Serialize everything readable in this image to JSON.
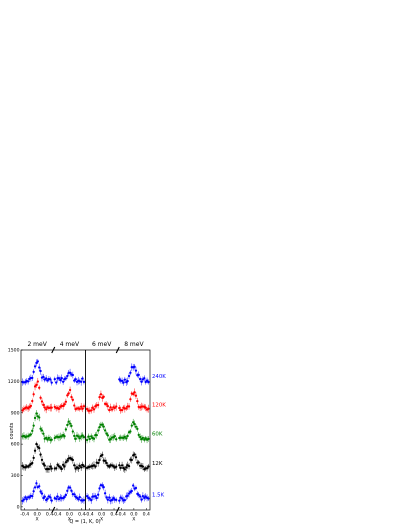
{
  "chart_data": {
    "type": "scatter",
    "ylabel": "counts",
    "xlabel": "Q = (1, K, 0)",
    "ylim": [
      -30,
      1500
    ],
    "y_ticks": [
      "0",
      "300",
      "600",
      "900",
      "1200",
      "1500"
    ],
    "y_tick_values": [
      0,
      300,
      600,
      900,
      1200,
      1500
    ],
    "panels": [
      {
        "label": "2 meV",
        "x_ticks": [
          "-0.4",
          "0.0",
          "0.4"
        ],
        "x_tick_values": [
          -0.4,
          0.0,
          0.4
        ],
        "x_sub_label": "X",
        "xlim": [
          -0.52,
          0.52
        ]
      },
      {
        "label": "4 meV",
        "x_ticks": [
          "-0.4",
          "0.0",
          "0.4"
        ],
        "x_tick_values": [
          -0.4,
          0.0,
          0.4
        ],
        "x_sub_label": "X",
        "xlim": [
          -0.52,
          0.52
        ]
      },
      {
        "label": "6 meV",
        "x_ticks": [
          "-0.4",
          "0.0",
          "0.4"
        ],
        "x_tick_values": [
          -0.4,
          0.0,
          0.4
        ],
        "x_sub_label": "X",
        "xlim": [
          -0.52,
          0.52
        ]
      },
      {
        "label": "8 meV",
        "x_ticks": [
          "-0.4",
          "0.0",
          "0.4"
        ],
        "x_tick_values": [
          -0.4,
          0.0,
          0.4
        ],
        "x_sub_label": "X",
        "xlim": [
          -0.52,
          0.52
        ]
      }
    ],
    "series": [
      {
        "name": "1.5K",
        "color": "#0000ff",
        "offset": 0,
        "peaks": [
          {
            "panel": 0,
            "amp": 130
          },
          {
            "panel": 1,
            "amp": 90
          },
          {
            "panel": 2,
            "amp": 120
          },
          {
            "panel": 3,
            "amp": 110
          }
        ],
        "base": 80
      },
      {
        "name": "12K",
        "color": "#000000",
        "offset": 300,
        "peaks": [
          {
            "panel": 0,
            "amp": 220
          },
          {
            "panel": 1,
            "amp": 100
          },
          {
            "panel": 2,
            "amp": 100
          },
          {
            "panel": 3,
            "amp": 110
          }
        ],
        "base": 80
      },
      {
        "name": "60K",
        "color": "#008000",
        "offset": 600,
        "peaks": [
          {
            "panel": 0,
            "amp": 230
          },
          {
            "panel": 1,
            "amp": 160
          },
          {
            "panel": 2,
            "amp": 120
          },
          {
            "panel": 3,
            "amp": 150
          }
        ],
        "base": 60
      },
      {
        "name": "120K",
        "color": "#ff0000",
        "offset": 900,
        "peaks": [
          {
            "panel": 0,
            "amp": 250
          },
          {
            "panel": 1,
            "amp": 170
          },
          {
            "panel": 2,
            "amp": 120
          },
          {
            "panel": 3,
            "amp": 160
          }
        ],
        "base": 40
      },
      {
        "name": "240K",
        "color": "#0000ff",
        "offset": 1150,
        "peaks": [
          {
            "panel": 0,
            "amp": 170
          },
          {
            "panel": 1,
            "amp": 80
          },
          {
            "panel": 3,
            "amp": 140
          }
        ],
        "base": 60
      }
    ]
  }
}
